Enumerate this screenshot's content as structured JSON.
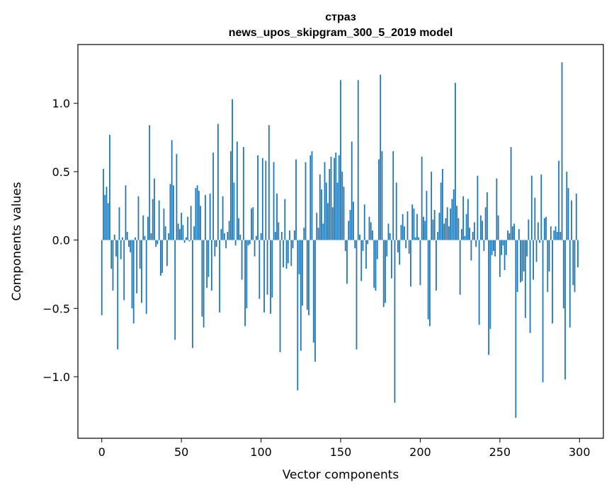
{
  "chart_data": {
    "type": "bar",
    "title": "страз",
    "subtitle": "news_upos_skipgram_300_5_2019 model",
    "xlabel": "Vector components",
    "ylabel": "Components values",
    "xlim": [
      -15,
      315
    ],
    "ylim": [
      -1.45,
      1.43
    ],
    "xticks": [
      0,
      50,
      100,
      150,
      200,
      250,
      300
    ],
    "xtick_labels": [
      "0",
      "50",
      "100",
      "150",
      "200",
      "250",
      "300"
    ],
    "yticks": [
      -1.0,
      -0.5,
      0.0,
      0.5,
      1.0
    ],
    "ytick_labels": [
      "−1.0",
      "−0.5",
      "0.0",
      "0.5",
      "1.0"
    ],
    "grid": false,
    "bar_color": "#1f77b4",
    "x": "component index 0..299",
    "values": [
      -0.55,
      0.52,
      0.33,
      0.39,
      0.27,
      0.77,
      -0.21,
      -0.37,
      0.04,
      -0.12,
      -0.8,
      0.24,
      -0.14,
      0.02,
      -0.44,
      0.4,
      0.06,
      -0.05,
      -0.09,
      -0.5,
      -0.61,
      0.02,
      -0.39,
      0.32,
      -0.21,
      -0.46,
      0.18,
      0.03,
      -0.54,
      0.17,
      0.84,
      0.05,
      0.3,
      0.45,
      -0.05,
      -0.03,
      0.29,
      -0.26,
      -0.24,
      0.23,
      0.1,
      -0.19,
      0.05,
      0.41,
      0.73,
      0.4,
      -0.73,
      0.63,
      0.12,
      0.08,
      0.2,
      0.11,
      -0.02,
      0.02,
      0.17,
      -0.01,
      0.25,
      -0.79,
      0.1,
      0.38,
      0.4,
      0.36,
      0.25,
      -0.56,
      -0.64,
      0.33,
      -0.35,
      -0.27,
      0.34,
      -0.37,
      0.64,
      -0.12,
      -0.05,
      0.85,
      -0.53,
      0.08,
      0.32,
      0.05,
      -0.06,
      0.06,
      0.14,
      0.65,
      1.03,
      0.42,
      -0.04,
      0.72,
      0.16,
      0.04,
      -0.29,
      0.68,
      -0.63,
      -0.5,
      -0.04,
      -0.03,
      0.23,
      0.24,
      -0.12,
      0.03,
      0.62,
      -0.43,
      0.05,
      0.6,
      -0.53,
      0.58,
      -0.4,
      0.84,
      -0.54,
      -0.42,
      0.57,
      0.06,
      0.34,
      0.13,
      -0.82,
      0.06,
      -0.2,
      0.3,
      -0.21,
      -0.17,
      0.07,
      -0.19,
      -0.06,
      0.07,
      0.59,
      -1.1,
      -0.25,
      -0.81,
      -0.48,
      0.09,
      0.57,
      -0.51,
      -0.55,
      0.62,
      0.65,
      -0.75,
      -0.89,
      0.2,
      0.09,
      0.48,
      0.37,
      0.12,
      0.57,
      0.42,
      0.27,
      0.52,
      0.61,
      0.24,
      0.6,
      0.64,
      0.42,
      0.62,
      1.17,
      0.5,
      0.39,
      -0.08,
      -0.32,
      0.14,
      0.22,
      0.72,
      0.28,
      -0.06,
      -0.8,
      1.17,
      0.04,
      -0.3,
      -0.08,
      0.26,
      -0.21,
      -0.03,
      0.17,
      0.13,
      0.07,
      -0.35,
      -0.37,
      -0.14,
      0.59,
      1.21,
      0.65,
      -0.49,
      -0.46,
      -0.12,
      0.12,
      0.05,
      -0.28,
      0.65,
      -1.19,
      0.42,
      -0.09,
      -0.18,
      0.11,
      0.19,
      0.1,
      -0.06,
      0.21,
      -0.1,
      -0.34,
      0.26,
      0.23,
      0.02,
      0.19,
      0.02,
      -0.33,
      0.61,
      0.17,
      0.14,
      0.36,
      -0.58,
      -0.63,
      0.5,
      0.15,
      0.22,
      -0.37,
      0.06,
      0.2,
      0.42,
      0.52,
      0.12,
      0.16,
      0.24,
      0.1,
      0.23,
      0.3,
      0.37,
      1.15,
      0.25,
      0.16,
      -0.4,
      0.08,
      0.32,
      0.03,
      0.19,
      0.3,
      0.09,
      -0.15,
      0.06,
      0.13,
      -0.05,
      0.47,
      -0.62,
      0.18,
      0.14,
      -0.08,
      0.24,
      0.35,
      -0.84,
      -0.65,
      -0.11,
      -0.08,
      -0.12,
      0.45,
      0.18,
      -0.27,
      -0.11,
      -0.04,
      -0.22,
      -0.11,
      0.07,
      0.05,
      0.68,
      0.1,
      0.12,
      -1.3,
      -0.38,
      0.08,
      -0.31,
      -0.3,
      -0.23,
      -0.57,
      -0.12,
      0.15,
      -0.68,
      0.47,
      -0.29,
      0.31,
      -0.16,
      0.13,
      -0.02,
      0.48,
      -1.04,
      0.16,
      0.17,
      -0.38,
      -0.23,
      0.1,
      -0.61,
      0.07,
      0.1,
      0.06,
      0.58,
      0.06,
      1.3,
      -0.5,
      -1.02,
      0.5,
      0.38,
      -0.64,
      0.29,
      -0.33,
      -0.38,
      0.34,
      -0.2
    ]
  }
}
